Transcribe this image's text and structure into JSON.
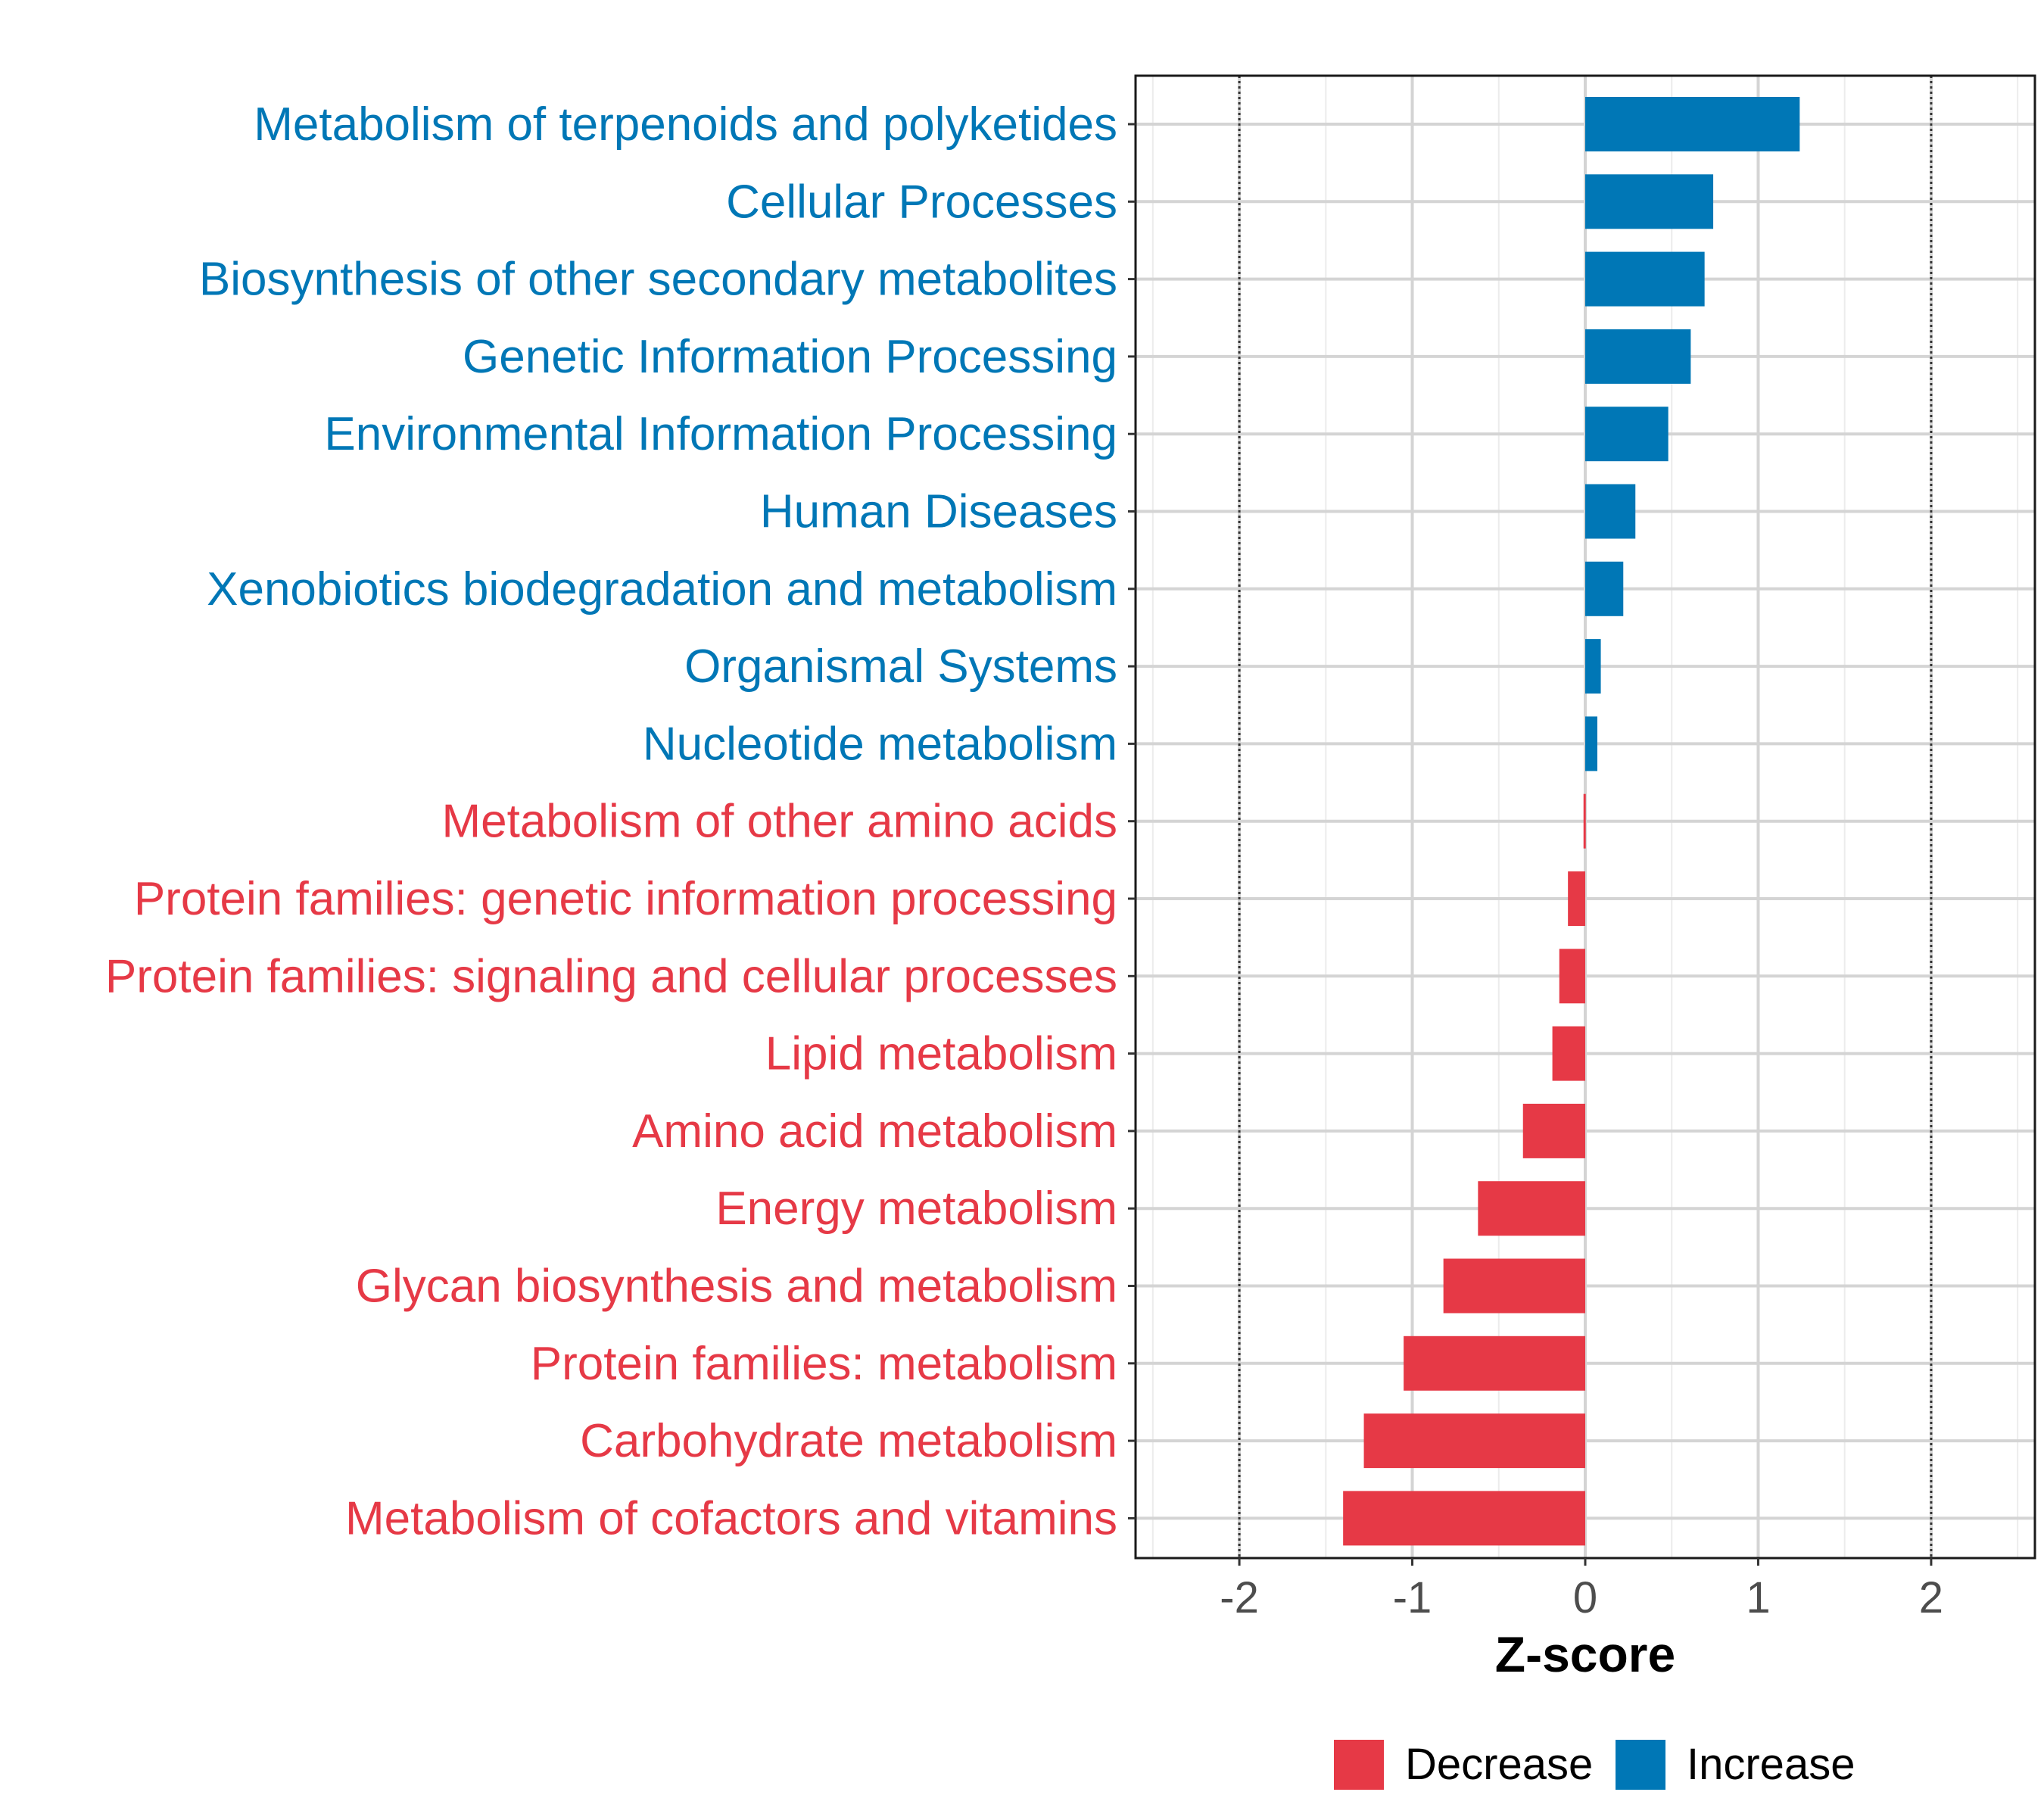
{
  "chart_data": {
    "type": "bar",
    "orientation": "horizontal",
    "xlabel": "Z-score",
    "ylabel": "",
    "xlim": [
      -2.6,
      2.6
    ],
    "x_ticks": [
      -2,
      -1,
      0,
      1,
      2
    ],
    "x_tick_labels": [
      "-2",
      "-1",
      "0",
      "1",
      "2"
    ],
    "reference_lines": [
      -2,
      2
    ],
    "grid": true,
    "legend_position": "bottom",
    "colors": {
      "Decrease": "#e63946",
      "Increase": "#0077b6"
    },
    "legend": [
      {
        "key": "Decrease",
        "label": "Decrease"
      },
      {
        "key": "Increase",
        "label": "Increase"
      }
    ],
    "categories": [
      "Metabolism of terpenoids and polyketides",
      "Cellular Processes",
      "Biosynthesis of other secondary metabolites",
      "Genetic Information Processing",
      "Environmental Information Processing",
      "Human Diseases",
      "Xenobiotics biodegradation and metabolism",
      "Organismal Systems",
      "Nucleotide metabolism",
      "Metabolism of other amino acids",
      "Protein families: genetic information processing",
      "Protein families: signaling and cellular processes",
      "Lipid metabolism",
      "Amino acid metabolism",
      "Energy metabolism",
      "Glycan biosynthesis and metabolism",
      "Protein families: metabolism",
      "Carbohydrate metabolism",
      "Metabolism of cofactors and vitamins"
    ],
    "values": [
      1.24,
      0.74,
      0.69,
      0.61,
      0.48,
      0.29,
      0.22,
      0.09,
      0.07,
      -0.01,
      -0.1,
      -0.15,
      -0.19,
      -0.36,
      -0.62,
      -0.82,
      -1.05,
      -1.28,
      -1.4
    ],
    "direction": [
      "Increase",
      "Increase",
      "Increase",
      "Increase",
      "Increase",
      "Increase",
      "Increase",
      "Increase",
      "Increase",
      "Decrease",
      "Decrease",
      "Decrease",
      "Decrease",
      "Decrease",
      "Decrease",
      "Decrease",
      "Decrease",
      "Decrease",
      "Decrease"
    ]
  }
}
